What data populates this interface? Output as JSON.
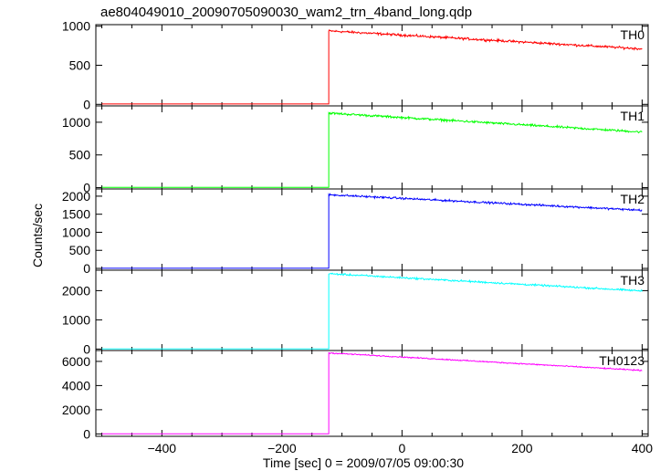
{
  "chart_data": {
    "type": "line",
    "title": "ae804049010_20090705090030_wam2_trn_4band_long.qdp",
    "xlabel": "Time [sec] 0 = 2009/07/05 09:00:30",
    "ylabel": "Counts/sec",
    "xlim": [
      -510,
      410
    ],
    "x_ticks": [
      -400,
      -200,
      0,
      200,
      400
    ],
    "x_tick_labels": [
      "−400",
      "−200",
      "0",
      "200",
      "400"
    ],
    "step_time": -122,
    "panels": [
      {
        "name": "TH0",
        "color": "#ff0000",
        "ylim": [
          -20,
          1020
        ],
        "yticks": [
          0,
          500,
          1000
        ],
        "pre_level": 5,
        "post_start": 940,
        "post_end": 710,
        "noise": 22
      },
      {
        "name": "TH1",
        "color": "#00ff00",
        "ylim": [
          -20,
          1250
        ],
        "yticks": [
          0,
          500,
          1000
        ],
        "pre_level": 5,
        "post_start": 1140,
        "post_end": 850,
        "noise": 25
      },
      {
        "name": "TH2",
        "color": "#0000ff",
        "ylim": [
          -50,
          2200
        ],
        "yticks": [
          0,
          500,
          1000,
          1500,
          2000
        ],
        "pre_level": 5,
        "post_start": 2040,
        "post_end": 1610,
        "noise": 40
      },
      {
        "name": "TH3",
        "color": "#00ffff",
        "ylim": [
          -50,
          2700
        ],
        "yticks": [
          0,
          1000,
          2000
        ],
        "pre_level": 5,
        "post_start": 2580,
        "post_end": 1990,
        "noise": 45
      },
      {
        "name": "TH0123",
        "color": "#ff00ff",
        "ylim": [
          -200,
          6900
        ],
        "yticks": [
          0,
          2000,
          4000,
          6000
        ],
        "pre_level": 10,
        "post_start": 6700,
        "post_end": 5250,
        "noise": 70
      }
    ]
  }
}
